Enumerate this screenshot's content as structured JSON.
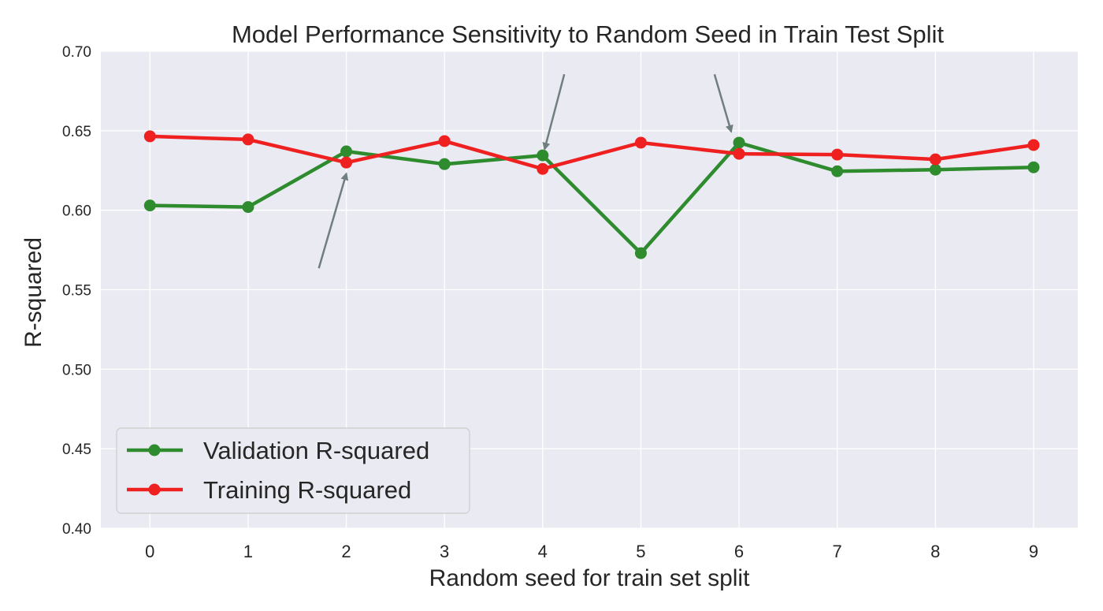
{
  "chart_data": {
    "type": "line",
    "title": "Model Performance Sensitivity to Random Seed in Train Test Split",
    "xlabel": "Random seed for train set split",
    "ylabel": "R-squared",
    "x": [
      0,
      1,
      2,
      3,
      4,
      5,
      6,
      7,
      8,
      9
    ],
    "x_tick_labels": [
      "0",
      "1",
      "2",
      "3",
      "4",
      "5",
      "6",
      "7",
      "8",
      "9"
    ],
    "y_tick_labels": [
      "0.40",
      "0.45",
      "0.50",
      "0.55",
      "0.60",
      "0.65",
      "0.70"
    ],
    "y_ticks": [
      0.4,
      0.45,
      0.5,
      0.55,
      0.6,
      0.65,
      0.7
    ],
    "xlim": [
      -0.5,
      9.45
    ],
    "ylim": [
      0.4,
      0.7
    ],
    "grid": true,
    "legend_position": "lower-left",
    "series": [
      {
        "name": "Validation R-squared",
        "color": "#2e8b2e",
        "values": [
          0.603,
          0.602,
          0.637,
          0.629,
          0.6345,
          0.573,
          0.6425,
          0.6245,
          0.6255,
          0.627
        ]
      },
      {
        "name": "Training R-squared",
        "color": "#ee2020",
        "values": [
          0.6465,
          0.6445,
          0.63,
          0.6435,
          0.626,
          0.6425,
          0.6355,
          0.635,
          0.632,
          0.641
        ]
      }
    ],
    "annotations": [
      {
        "type": "arrow",
        "target_x": 2,
        "target_y": 0.623,
        "tail_x": 1.72,
        "tail_y": 0.5635
      },
      {
        "type": "arrow",
        "target_x": 4.02,
        "target_y": 0.6385,
        "tail_x": 4.22,
        "tail_y": 0.6855
      },
      {
        "type": "arrow",
        "target_x": 5.92,
        "target_y": 0.6495,
        "tail_x": 5.75,
        "tail_y": 0.6855
      }
    ],
    "colors": {
      "plot_background": "#eaeaf2",
      "grid": "#ffffff",
      "arrow": "#6f7f80",
      "legend_background": "#eaeaf2",
      "legend_border": "#cccccc"
    }
  }
}
